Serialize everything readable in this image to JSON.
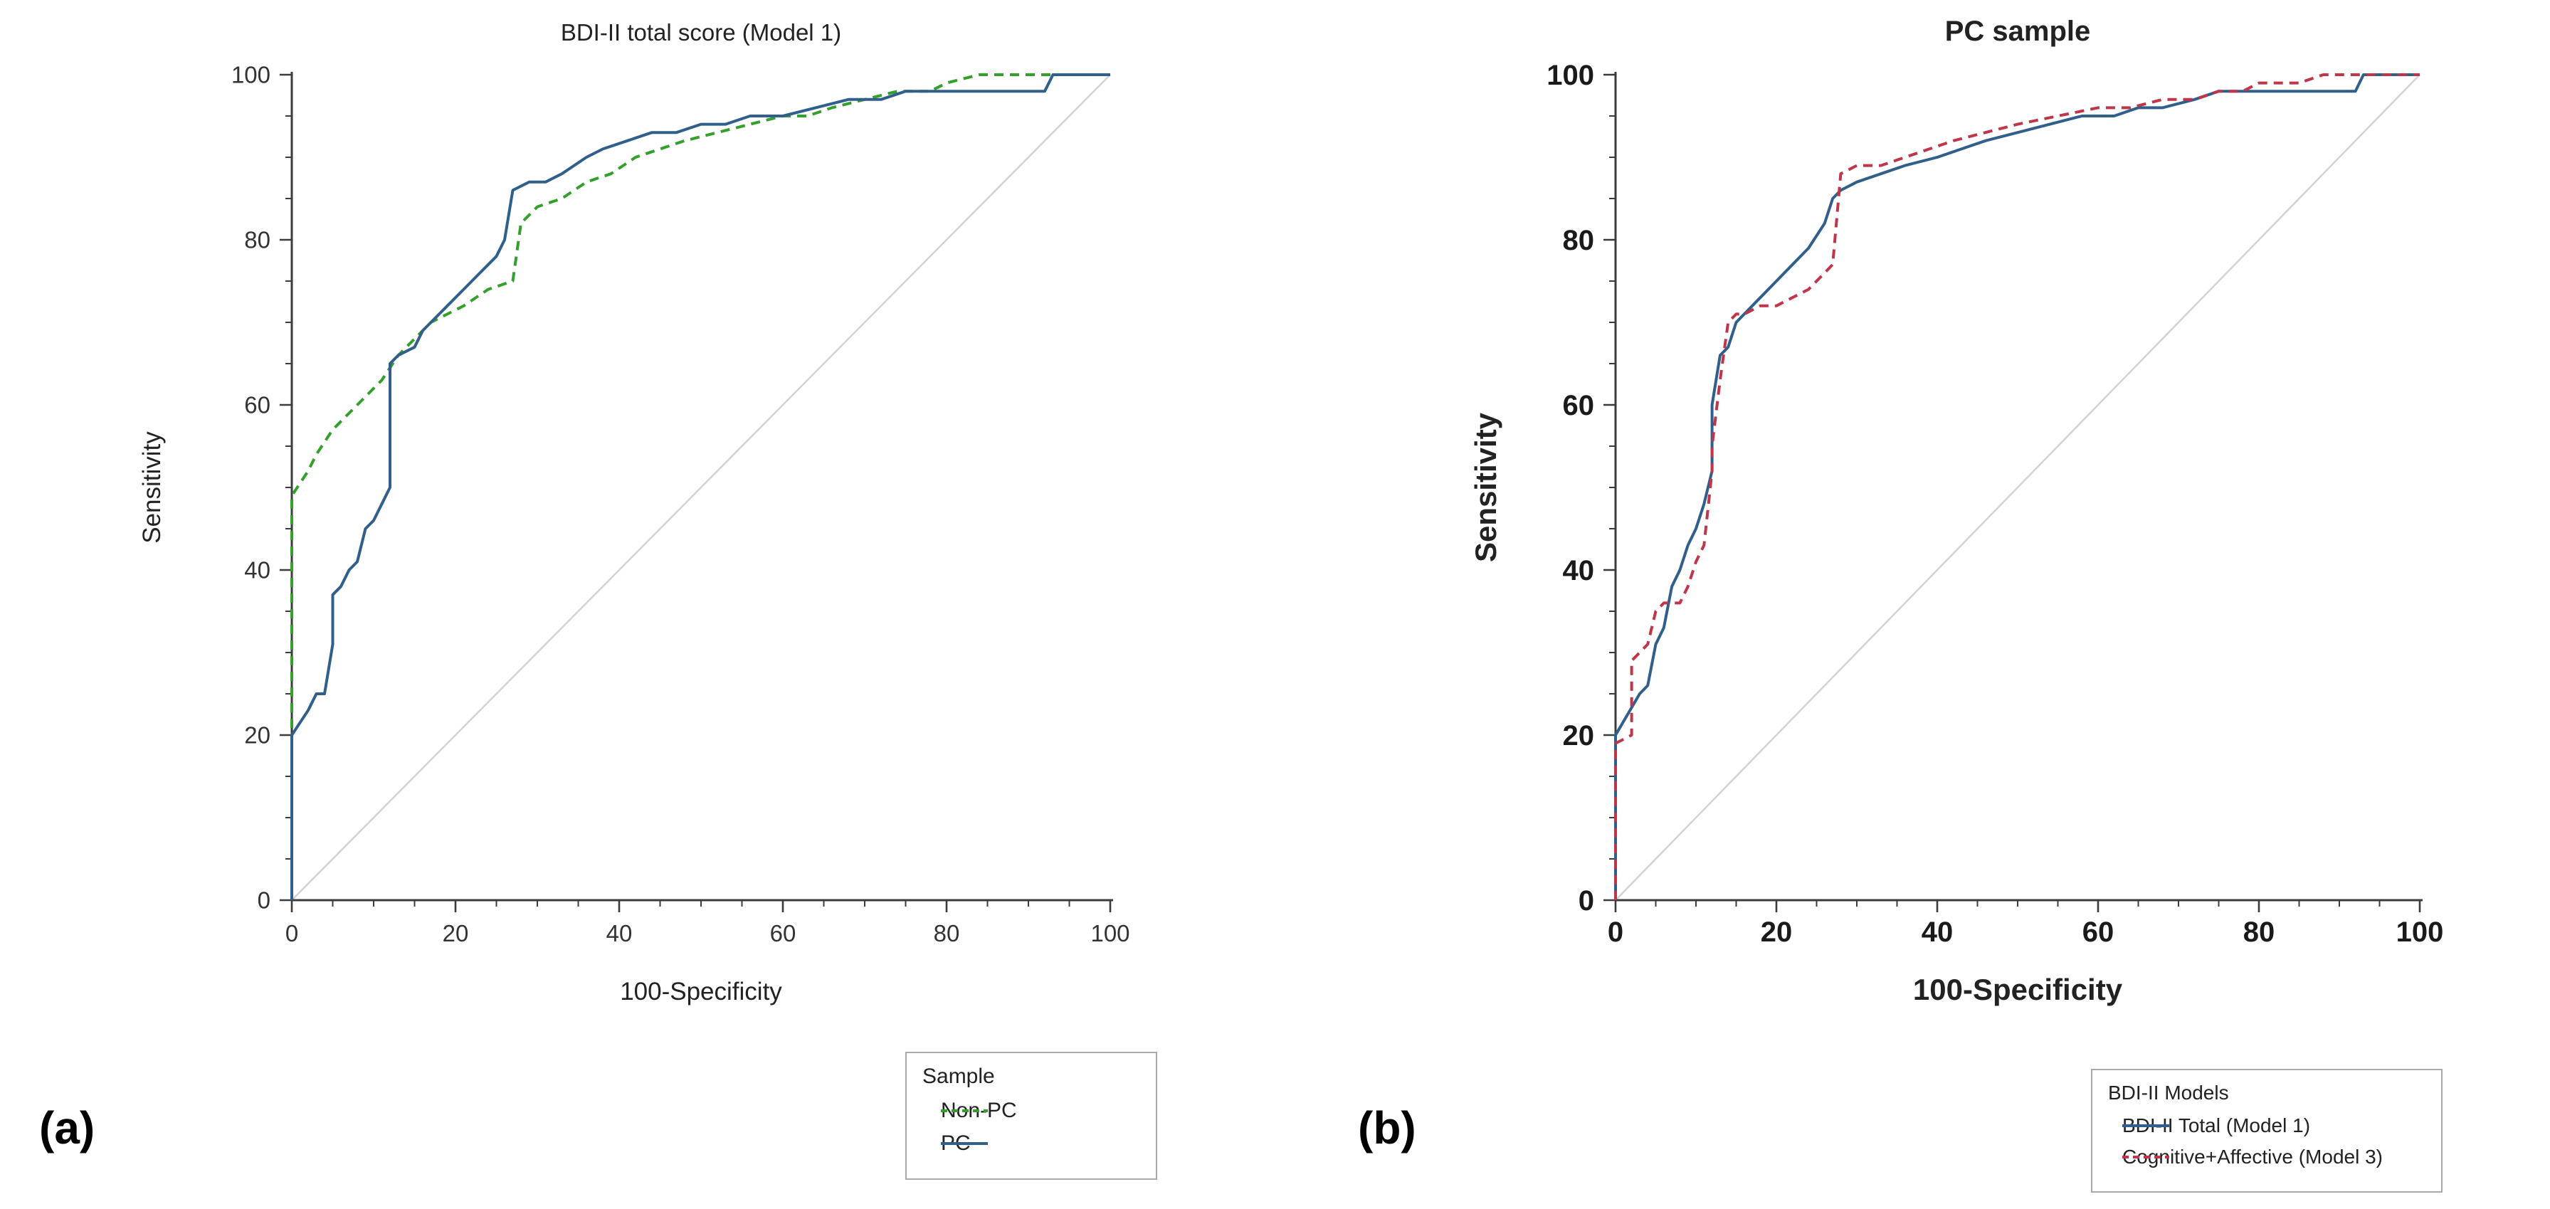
{
  "figure": {
    "panel_a_label": "(a)",
    "panel_b_label": "(b)",
    "background": "#ffffff"
  },
  "chart_data": [
    {
      "type": "line",
      "subtype": "roc-curve",
      "title": "BDI-II total score (Model 1)",
      "xlabel": "100-Specificity",
      "ylabel": "Sensitivity",
      "xlim": [
        0,
        100
      ],
      "ylim": [
        0,
        100
      ],
      "x_ticks": [
        0,
        20,
        40,
        60,
        80,
        100
      ],
      "y_ticks": [
        0,
        20,
        40,
        60,
        80,
        100
      ],
      "minor_tick_step": 5,
      "grid": false,
      "reference_line": {
        "from": [
          0,
          0
        ],
        "to": [
          100,
          100
        ],
        "color": "#d3d3d3"
      },
      "legend": {
        "title": "Sample",
        "position": "below-right"
      },
      "series": [
        {
          "name": "Non-PC",
          "color": "#33a02c",
          "dash": "dashed",
          "points": [
            [
              0,
              0
            ],
            [
              0,
              49
            ],
            [
              2,
              52
            ],
            [
              3,
              54
            ],
            [
              5,
              57
            ],
            [
              7,
              59
            ],
            [
              9,
              61
            ],
            [
              11,
              63
            ],
            [
              13,
              66
            ],
            [
              15,
              68
            ],
            [
              17,
              70
            ],
            [
              19,
              71
            ],
            [
              21,
              72
            ],
            [
              24,
              74
            ],
            [
              27,
              75
            ],
            [
              28,
              82
            ],
            [
              30,
              84
            ],
            [
              33,
              85
            ],
            [
              36,
              87
            ],
            [
              39,
              88
            ],
            [
              42,
              90
            ],
            [
              45,
              91
            ],
            [
              48,
              92
            ],
            [
              52,
              93
            ],
            [
              56,
              94
            ],
            [
              60,
              95
            ],
            [
              63,
              95
            ],
            [
              66,
              96
            ],
            [
              70,
              97
            ],
            [
              74,
              98
            ],
            [
              78,
              98
            ],
            [
              80,
              99
            ],
            [
              84,
              100
            ],
            [
              100,
              100
            ]
          ]
        },
        {
          "name": "PC",
          "color": "#315f8c",
          "dash": "solid",
          "points": [
            [
              0,
              0
            ],
            [
              0,
              20
            ],
            [
              2,
              23
            ],
            [
              3,
              25
            ],
            [
              4,
              25
            ],
            [
              5,
              31
            ],
            [
              5,
              37
            ],
            [
              6,
              38
            ],
            [
              7,
              40
            ],
            [
              8,
              41
            ],
            [
              9,
              45
            ],
            [
              10,
              46
            ],
            [
              11,
              48
            ],
            [
              12,
              50
            ],
            [
              12,
              65
            ],
            [
              13,
              66
            ],
            [
              15,
              67
            ],
            [
              16,
              69
            ],
            [
              17,
              70
            ],
            [
              19,
              72
            ],
            [
              21,
              74
            ],
            [
              23,
              76
            ],
            [
              25,
              78
            ],
            [
              26,
              80
            ],
            [
              27,
              86
            ],
            [
              29,
              87
            ],
            [
              31,
              87
            ],
            [
              33,
              88
            ],
            [
              36,
              90
            ],
            [
              38,
              91
            ],
            [
              41,
              92
            ],
            [
              44,
              93
            ],
            [
              47,
              93
            ],
            [
              50,
              94
            ],
            [
              53,
              94
            ],
            [
              56,
              95
            ],
            [
              60,
              95
            ],
            [
              64,
              96
            ],
            [
              68,
              97
            ],
            [
              72,
              97
            ],
            [
              75,
              98
            ],
            [
              85,
              98
            ],
            [
              92,
              98
            ],
            [
              93,
              100
            ],
            [
              100,
              100
            ]
          ]
        }
      ]
    },
    {
      "type": "line",
      "subtype": "roc-curve",
      "title": "PC sample",
      "xlabel": "100-Specificity",
      "ylabel": "Sensitivity",
      "xlim": [
        0,
        100
      ],
      "ylim": [
        0,
        100
      ],
      "x_ticks": [
        0,
        20,
        40,
        60,
        80,
        100
      ],
      "y_ticks": [
        0,
        20,
        40,
        60,
        80,
        100
      ],
      "minor_tick_step": 5,
      "grid": false,
      "reference_line": {
        "from": [
          0,
          0
        ],
        "to": [
          100,
          100
        ],
        "color": "#d3d3d3"
      },
      "legend": {
        "title": "BDI-II Models",
        "position": "below-right"
      },
      "series": [
        {
          "name": "BDI-II Total (Model 1)",
          "color": "#315f8c",
          "dash": "solid",
          "points": [
            [
              0,
              0
            ],
            [
              0,
              20
            ],
            [
              3,
              25
            ],
            [
              4,
              26
            ],
            [
              5,
              31
            ],
            [
              6,
              33
            ],
            [
              7,
              38
            ],
            [
              8,
              40
            ],
            [
              9,
              43
            ],
            [
              10,
              45
            ],
            [
              11,
              48
            ],
            [
              12,
              52
            ],
            [
              12,
              60
            ],
            [
              13,
              66
            ],
            [
              14,
              67
            ],
            [
              15,
              70
            ],
            [
              16,
              71
            ],
            [
              18,
              73
            ],
            [
              20,
              75
            ],
            [
              22,
              77
            ],
            [
              24,
              79
            ],
            [
              26,
              82
            ],
            [
              27,
              85
            ],
            [
              28,
              86
            ],
            [
              30,
              87
            ],
            [
              33,
              88
            ],
            [
              36,
              89
            ],
            [
              40,
              90
            ],
            [
              43,
              91
            ],
            [
              46,
              92
            ],
            [
              50,
              93
            ],
            [
              54,
              94
            ],
            [
              58,
              95
            ],
            [
              62,
              95
            ],
            [
              65,
              96
            ],
            [
              68,
              96
            ],
            [
              72,
              97
            ],
            [
              75,
              98
            ],
            [
              85,
              98
            ],
            [
              92,
              98
            ],
            [
              93,
              100
            ],
            [
              100,
              100
            ]
          ]
        },
        {
          "name": "Cognitive+Affective (Model 3)",
          "color": "#bf3549",
          "dash": "dashed",
          "points": [
            [
              0,
              0
            ],
            [
              0,
              19
            ],
            [
              2,
              20
            ],
            [
              2,
              29
            ],
            [
              3,
              30
            ],
            [
              4,
              31
            ],
            [
              5,
              35
            ],
            [
              6,
              36
            ],
            [
              8,
              36
            ],
            [
              9,
              38
            ],
            [
              10,
              41
            ],
            [
              11,
              43
            ],
            [
              12,
              52
            ],
            [
              12,
              55
            ],
            [
              13,
              63
            ],
            [
              14,
              70
            ],
            [
              15,
              71
            ],
            [
              16,
              71
            ],
            [
              18,
              72
            ],
            [
              20,
              72
            ],
            [
              22,
              73
            ],
            [
              24,
              74
            ],
            [
              26,
              76
            ],
            [
              27,
              77
            ],
            [
              28,
              88
            ],
            [
              30,
              89
            ],
            [
              33,
              89
            ],
            [
              36,
              90
            ],
            [
              39,
              91
            ],
            [
              42,
              92
            ],
            [
              46,
              93
            ],
            [
              50,
              94
            ],
            [
              55,
              95
            ],
            [
              60,
              96
            ],
            [
              64,
              96
            ],
            [
              68,
              97
            ],
            [
              72,
              97
            ],
            [
              75,
              98
            ],
            [
              78,
              98
            ],
            [
              80,
              99
            ],
            [
              85,
              99
            ],
            [
              88,
              100
            ],
            [
              100,
              100
            ]
          ]
        }
      ]
    }
  ]
}
